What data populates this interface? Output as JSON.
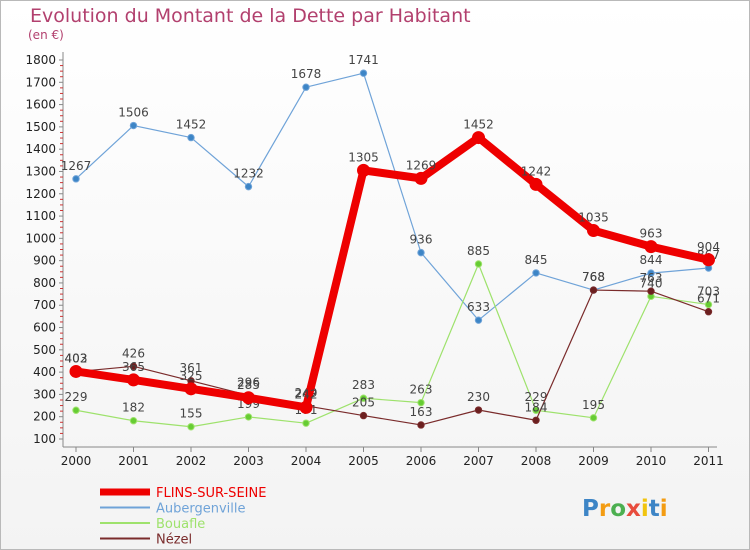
{
  "title": "Evolution du Montant de la Dette par Habitant",
  "unit": "(en €)",
  "logo": "Proxiti",
  "colors": {
    "FLINS-SUR-SEINE": "#ee0000",
    "Aubergenville": "#6fa3d8",
    "Bouafle": "#9ee26c",
    "Nézel": "#7a2b2b"
  },
  "chart_data": {
    "type": "line",
    "x": [
      "2000",
      "2001",
      "2002",
      "2003",
      "2004",
      "2005",
      "2006",
      "2007",
      "2008",
      "2009",
      "2010",
      "2011"
    ],
    "ylim": [
      100,
      1800
    ],
    "yticks": [
      100,
      200,
      300,
      400,
      500,
      600,
      700,
      800,
      900,
      1000,
      1100,
      1200,
      1300,
      1400,
      1500,
      1600,
      1700,
      1800
    ],
    "grid": false,
    "legend": "bottom-left",
    "series": [
      {
        "name": "Aubergenville",
        "values": [
          1267,
          1506,
          1452,
          1232,
          1678,
          1741,
          936,
          633,
          845,
          768,
          844,
          867
        ]
      },
      {
        "name": "Bouafle",
        "values": [
          229,
          182,
          155,
          199,
          171,
          283,
          263,
          885,
          229,
          195,
          740,
          703
        ]
      },
      {
        "name": "Nézel",
        "values": [
          402,
          426,
          361,
          296,
          249,
          205,
          163,
          230,
          184,
          768,
          763,
          671
        ]
      },
      {
        "name": "FLINS-SUR-SEINE",
        "values": [
          403,
          365,
          325,
          285,
          242,
          1305,
          1269,
          1452,
          1242,
          1035,
          963,
          904
        ]
      }
    ]
  }
}
